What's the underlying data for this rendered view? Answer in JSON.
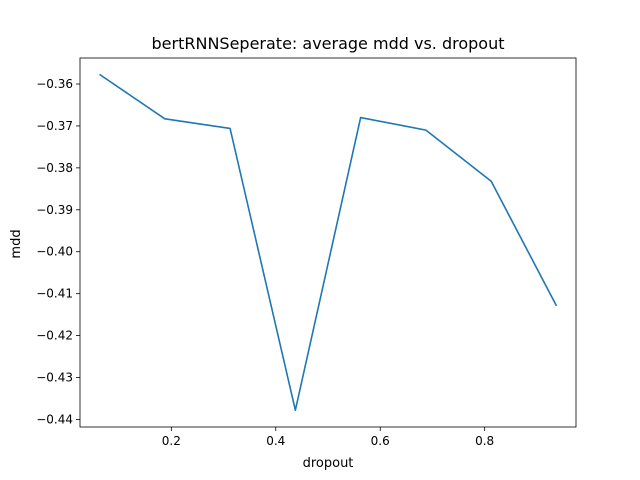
{
  "chart_data": {
    "type": "line",
    "title": "bertRNNSeperate: average mdd vs. dropout",
    "xlabel": "dropout",
    "ylabel": "mdd",
    "xlim": [
      0.0251,
      0.9749
    ],
    "ylim": [
      -0.4418,
      -0.3538
    ],
    "xticks": [
      0.2,
      0.4,
      0.6,
      0.8
    ],
    "xtick_labels": [
      "0.2",
      "0.4",
      "0.6",
      "0.8"
    ],
    "yticks": [
      -0.36,
      -0.37,
      -0.38,
      -0.39,
      -0.4,
      -0.41,
      -0.42,
      -0.43,
      -0.44
    ],
    "ytick_labels": [
      "−0.36",
      "−0.37",
      "−0.38",
      "−0.39",
      "−0.40",
      "−0.41",
      "−0.42",
      "−0.43",
      "−0.44"
    ],
    "grid": false,
    "series": [
      {
        "color": "#1f77b4",
        "x": [
          0.0625,
          0.1875,
          0.3125,
          0.4375,
          0.5625,
          0.6875,
          0.8125,
          0.9375
        ],
        "y": [
          -0.3577,
          -0.3683,
          -0.3706,
          -0.4378,
          -0.368,
          -0.371,
          -0.3832,
          -0.4129
        ]
      }
    ]
  }
}
